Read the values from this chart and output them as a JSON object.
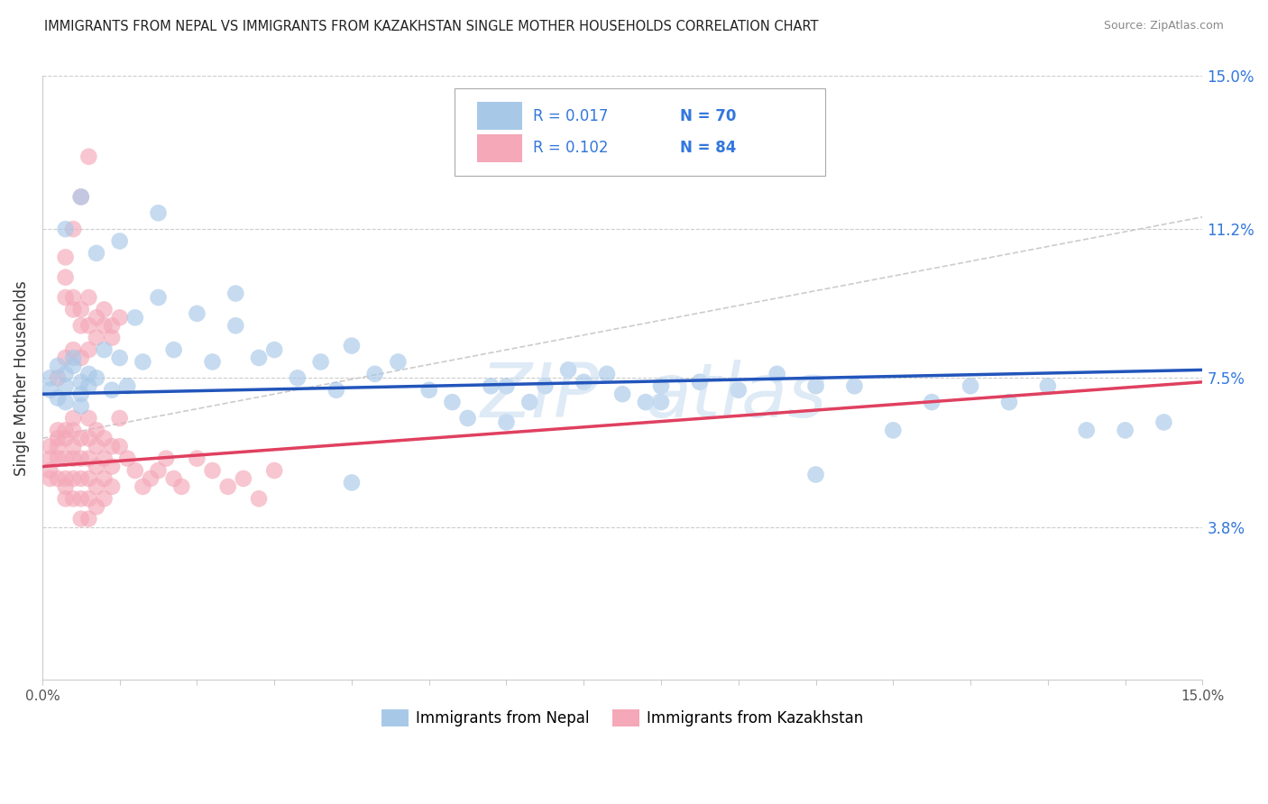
{
  "title": "IMMIGRANTS FROM NEPAL VS IMMIGRANTS FROM KAZAKHSTAN SINGLE MOTHER HOUSEHOLDS CORRELATION CHART",
  "source": "Source: ZipAtlas.com",
  "ylabel": "Single Mother Households",
  "xlim": [
    0.0,
    0.15
  ],
  "ylim": [
    0.0,
    0.15
  ],
  "ytick_labels_right": [
    "15.0%",
    "11.2%",
    "7.5%",
    "3.8%"
  ],
  "ytick_positions_right": [
    0.15,
    0.112,
    0.075,
    0.038
  ],
  "legend_r1": "R = 0.017",
  "legend_n1": "N = 70",
  "legend_r2": "R = 0.102",
  "legend_n2": "N = 84",
  "color_nepal": "#a8c8e8",
  "color_kazakhstan": "#f4a8b8",
  "color_line_nepal": "#2255bb",
  "color_line_kazakhstan": "#e04060",
  "color_dashed": "#ddaaaa",
  "legend_text_color": "#3377dd",
  "nepal_x": [
    0.001,
    0.001,
    0.002,
    0.002,
    0.003,
    0.003,
    0.003,
    0.004,
    0.004,
    0.005,
    0.005,
    0.005,
    0.006,
    0.006,
    0.007,
    0.008,
    0.009,
    0.01,
    0.011,
    0.012,
    0.013,
    0.015,
    0.017,
    0.02,
    0.022,
    0.025,
    0.028,
    0.03,
    0.033,
    0.036,
    0.038,
    0.04,
    0.043,
    0.046,
    0.05,
    0.053,
    0.055,
    0.058,
    0.06,
    0.063,
    0.065,
    0.068,
    0.07,
    0.073,
    0.075,
    0.078,
    0.08,
    0.085,
    0.09,
    0.095,
    0.1,
    0.105,
    0.11,
    0.115,
    0.12,
    0.125,
    0.13,
    0.135,
    0.14,
    0.145,
    0.003,
    0.005,
    0.007,
    0.01,
    0.015,
    0.025,
    0.04,
    0.06,
    0.08,
    0.1
  ],
  "nepal_y": [
    0.075,
    0.072,
    0.078,
    0.07,
    0.076,
    0.073,
    0.069,
    0.078,
    0.08,
    0.074,
    0.071,
    0.068,
    0.076,
    0.073,
    0.075,
    0.082,
    0.072,
    0.08,
    0.073,
    0.09,
    0.079,
    0.095,
    0.082,
    0.091,
    0.079,
    0.088,
    0.08,
    0.082,
    0.075,
    0.079,
    0.072,
    0.083,
    0.076,
    0.079,
    0.072,
    0.069,
    0.065,
    0.073,
    0.064,
    0.069,
    0.073,
    0.077,
    0.074,
    0.076,
    0.071,
    0.069,
    0.073,
    0.074,
    0.072,
    0.076,
    0.073,
    0.073,
    0.062,
    0.069,
    0.073,
    0.069,
    0.073,
    0.062,
    0.062,
    0.064,
    0.112,
    0.12,
    0.106,
    0.109,
    0.116,
    0.096,
    0.049,
    0.073,
    0.069,
    0.051
  ],
  "kazakhstan_x": [
    0.001,
    0.001,
    0.001,
    0.001,
    0.002,
    0.002,
    0.002,
    0.002,
    0.002,
    0.003,
    0.003,
    0.003,
    0.003,
    0.003,
    0.003,
    0.004,
    0.004,
    0.004,
    0.004,
    0.004,
    0.004,
    0.005,
    0.005,
    0.005,
    0.005,
    0.005,
    0.006,
    0.006,
    0.006,
    0.006,
    0.006,
    0.006,
    0.007,
    0.007,
    0.007,
    0.007,
    0.007,
    0.008,
    0.008,
    0.008,
    0.008,
    0.009,
    0.009,
    0.009,
    0.01,
    0.01,
    0.011,
    0.012,
    0.013,
    0.014,
    0.015,
    0.016,
    0.017,
    0.018,
    0.02,
    0.022,
    0.024,
    0.026,
    0.028,
    0.03,
    0.002,
    0.003,
    0.004,
    0.005,
    0.006,
    0.007,
    0.008,
    0.009,
    0.01,
    0.003,
    0.004,
    0.005,
    0.006,
    0.007,
    0.008,
    0.009,
    0.003,
    0.004,
    0.005,
    0.006,
    0.003,
    0.004,
    0.005,
    0.006
  ],
  "kazakhstan_y": [
    0.055,
    0.05,
    0.058,
    0.052,
    0.06,
    0.055,
    0.05,
    0.058,
    0.062,
    0.06,
    0.055,
    0.05,
    0.045,
    0.062,
    0.048,
    0.065,
    0.058,
    0.055,
    0.05,
    0.045,
    0.062,
    0.06,
    0.055,
    0.05,
    0.045,
    0.04,
    0.065,
    0.06,
    0.055,
    0.05,
    0.045,
    0.04,
    0.062,
    0.058,
    0.053,
    0.048,
    0.043,
    0.06,
    0.055,
    0.05,
    0.045,
    0.058,
    0.053,
    0.048,
    0.065,
    0.058,
    0.055,
    0.052,
    0.048,
    0.05,
    0.052,
    0.055,
    0.05,
    0.048,
    0.055,
    0.052,
    0.048,
    0.05,
    0.045,
    0.052,
    0.075,
    0.08,
    0.082,
    0.08,
    0.082,
    0.085,
    0.088,
    0.085,
    0.09,
    0.095,
    0.092,
    0.088,
    0.095,
    0.09,
    0.092,
    0.088,
    0.1,
    0.095,
    0.092,
    0.088,
    0.105,
    0.112,
    0.12,
    0.13
  ]
}
